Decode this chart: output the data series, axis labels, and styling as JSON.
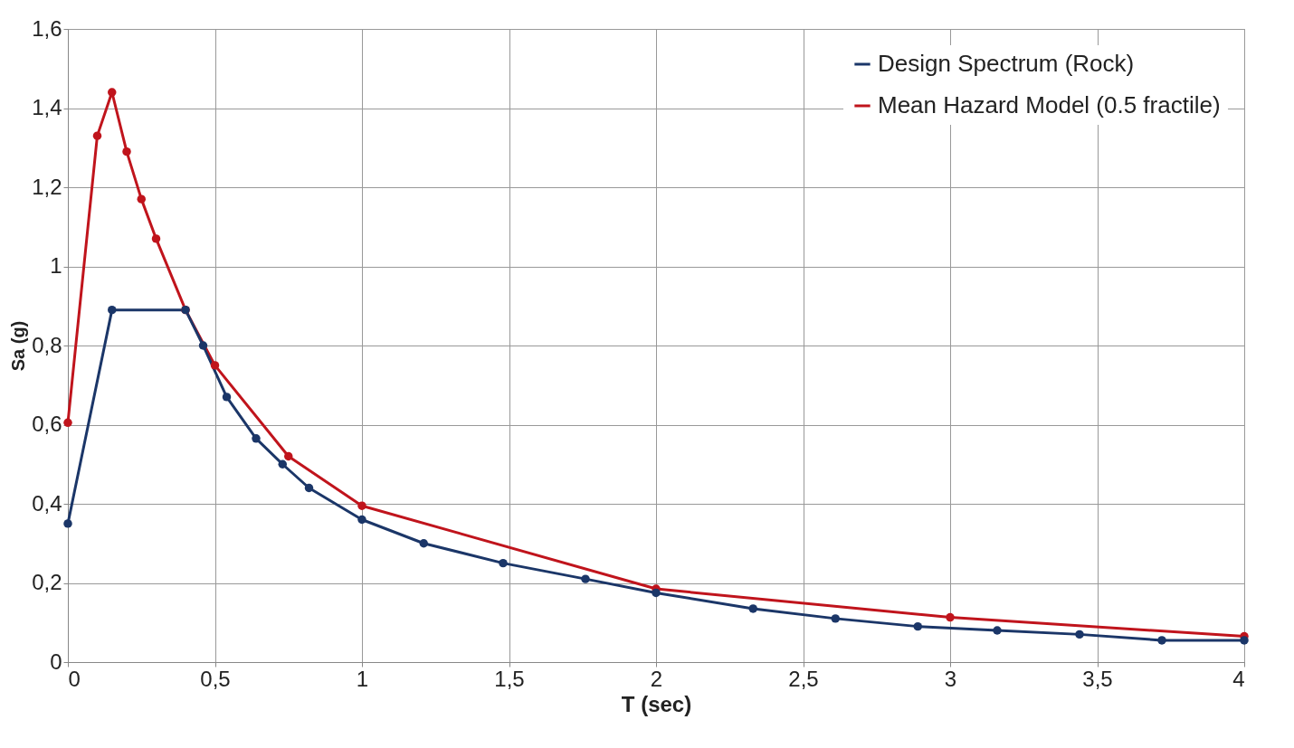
{
  "chart_data": {
    "type": "line",
    "xlabel": "T (sec)",
    "ylabel": "Sa (g)",
    "xlim": [
      0,
      4
    ],
    "ylim": [
      0,
      1.6
    ],
    "xticks": [
      0,
      {
        "value": 0.5,
        "label": "0,5"
      },
      1,
      {
        "value": 1.5,
        "label": "1,5"
      },
      2,
      {
        "value": 2.5,
        "label": "2,5"
      },
      3,
      {
        "value": 3.5,
        "label": "3,5"
      },
      4
    ],
    "yticks": [
      0,
      {
        "value": 0.2,
        "label": "0,2"
      },
      {
        "value": 0.4,
        "label": "0,4"
      },
      {
        "value": 0.6,
        "label": "0,6"
      },
      {
        "value": 0.8,
        "label": "0,8"
      },
      1,
      {
        "value": 1.2,
        "label": "1,2"
      },
      {
        "value": 1.4,
        "label": "1,4"
      },
      {
        "value": 1.6,
        "label": "1,6"
      }
    ],
    "grid": true,
    "legend": "top right",
    "marker": "circle",
    "line_style": "solid",
    "series": [
      {
        "name": "Design Spectrum (Rock)",
        "color": "#1b3668",
        "x": [
          0,
          0.15,
          0.4,
          0.46,
          0.54,
          0.64,
          0.73,
          0.82,
          1.0,
          1.21,
          1.48,
          1.76,
          2.0,
          2.33,
          2.61,
          2.89,
          3.16,
          3.44,
          3.72,
          4.0
        ],
        "values": [
          0.35,
          0.89,
          0.89,
          0.8,
          0.67,
          0.565,
          0.5,
          0.44,
          0.36,
          0.3,
          0.25,
          0.21,
          0.175,
          0.135,
          0.11,
          0.09,
          0.08,
          0.07,
          0.055,
          0.055
        ]
      },
      {
        "name": "Mean Hazard Model (0.5 fractile)",
        "color": "#c0141c",
        "x": [
          0,
          0.1,
          0.15,
          0.2,
          0.25,
          0.3,
          0.4,
          0.5,
          0.75,
          1.0,
          2.0,
          3.0,
          4.0
        ],
        "values": [
          0.605,
          1.33,
          1.44,
          1.29,
          1.17,
          1.07,
          0.89,
          0.75,
          0.52,
          0.395,
          0.185,
          0.113,
          0.065
        ]
      }
    ]
  }
}
